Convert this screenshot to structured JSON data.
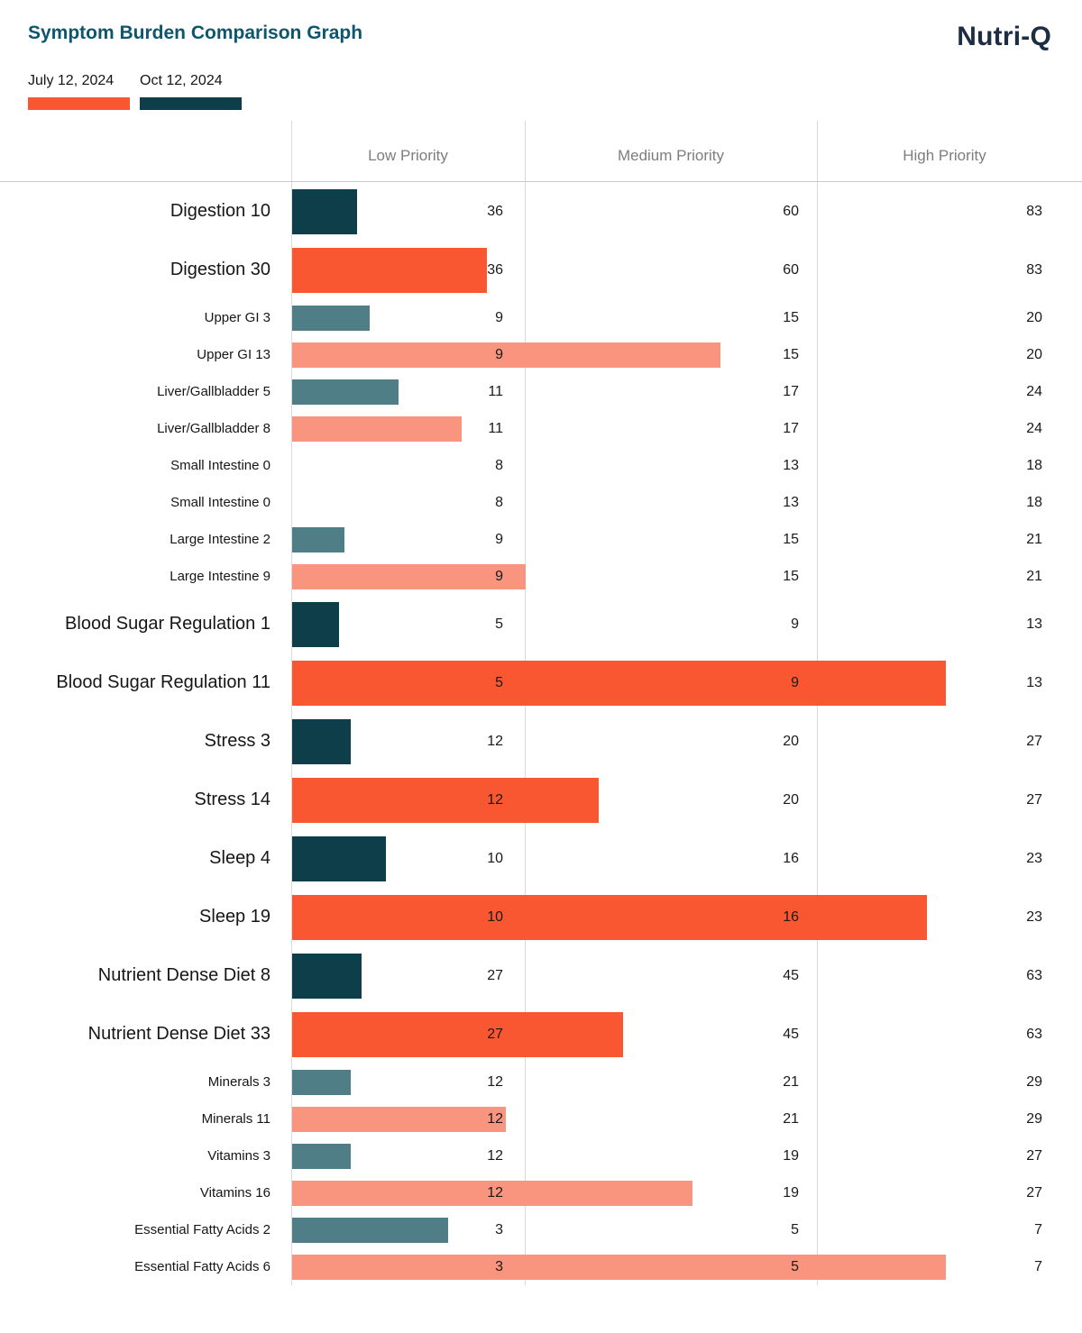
{
  "header": {
    "title": "Symptom Burden Comparison Graph",
    "logo": "Nutri-Q"
  },
  "chart_data": {
    "type": "bar",
    "orientation": "horizontal",
    "title": "Symptom Burden Comparison Graph",
    "columns": [
      "Low Priority",
      "Medium Priority",
      "High Priority"
    ],
    "legend": [
      {
        "name": "July 12, 2024",
        "series": "july",
        "color": "#f95732"
      },
      {
        "name": "Oct 12, 2024",
        "series": "oct",
        "color": "#0e3e4a"
      }
    ],
    "colors": {
      "july_large": "#f95732",
      "july_small": "#f9947e",
      "oct_large": "#0e3e4a",
      "oct_small": "#4f7e87"
    },
    "rows": [
      {
        "label": "Digestion 10",
        "value": 10,
        "thresholds": [
          36,
          60,
          83
        ],
        "series": "oct",
        "emphasis": "large"
      },
      {
        "label": "Digestion 30",
        "value": 30,
        "thresholds": [
          36,
          60,
          83
        ],
        "series": "july",
        "emphasis": "large"
      },
      {
        "label": "Upper GI 3",
        "value": 3,
        "thresholds": [
          9,
          15,
          20
        ],
        "series": "oct",
        "emphasis": "small"
      },
      {
        "label": "Upper GI 13",
        "value": 13,
        "thresholds": [
          9,
          15,
          20
        ],
        "series": "july",
        "emphasis": "small"
      },
      {
        "label": "Liver/Gallbladder 5",
        "value": 5,
        "thresholds": [
          11,
          17,
          24
        ],
        "series": "oct",
        "emphasis": "small"
      },
      {
        "label": "Liver/Gallbladder 8",
        "value": 8,
        "thresholds": [
          11,
          17,
          24
        ],
        "series": "july",
        "emphasis": "small"
      },
      {
        "label": "Small Intestine 0",
        "value": 0,
        "thresholds": [
          8,
          13,
          18
        ],
        "series": "oct",
        "emphasis": "small"
      },
      {
        "label": "Small Intestine 0",
        "value": 0,
        "thresholds": [
          8,
          13,
          18
        ],
        "series": "july",
        "emphasis": "small"
      },
      {
        "label": "Large Intestine 2",
        "value": 2,
        "thresholds": [
          9,
          15,
          21
        ],
        "series": "oct",
        "emphasis": "small"
      },
      {
        "label": "Large Intestine 9",
        "value": 9,
        "thresholds": [
          9,
          15,
          21
        ],
        "series": "july",
        "emphasis": "small"
      },
      {
        "label": "Blood Sugar Regulation 1",
        "value": 1,
        "thresholds": [
          5,
          9,
          13
        ],
        "series": "oct",
        "emphasis": "large"
      },
      {
        "label": "Blood Sugar Regulation 11",
        "value": 11,
        "thresholds": [
          5,
          9,
          13
        ],
        "series": "july",
        "emphasis": "large"
      },
      {
        "label": "Stress 3",
        "value": 3,
        "thresholds": [
          12,
          20,
          27
        ],
        "series": "oct",
        "emphasis": "large"
      },
      {
        "label": "Stress 14",
        "value": 14,
        "thresholds": [
          12,
          20,
          27
        ],
        "series": "july",
        "emphasis": "large"
      },
      {
        "label": "Sleep 4",
        "value": 4,
        "thresholds": [
          10,
          16,
          23
        ],
        "series": "oct",
        "emphasis": "large"
      },
      {
        "label": "Sleep 19",
        "value": 19,
        "thresholds": [
          10,
          16,
          23
        ],
        "series": "july",
        "emphasis": "large"
      },
      {
        "label": "Nutrient Dense Diet 8",
        "value": 8,
        "thresholds": [
          27,
          45,
          63
        ],
        "series": "oct",
        "emphasis": "large"
      },
      {
        "label": "Nutrient Dense Diet 33",
        "value": 33,
        "thresholds": [
          27,
          45,
          63
        ],
        "series": "july",
        "emphasis": "large"
      },
      {
        "label": "Minerals 3",
        "value": 3,
        "thresholds": [
          12,
          21,
          29
        ],
        "series": "oct",
        "emphasis": "small"
      },
      {
        "label": "Minerals 11",
        "value": 11,
        "thresholds": [
          12,
          21,
          29
        ],
        "series": "july",
        "emphasis": "small"
      },
      {
        "label": "Vitamins 3",
        "value": 3,
        "thresholds": [
          12,
          19,
          27
        ],
        "series": "oct",
        "emphasis": "small"
      },
      {
        "label": "Vitamins 16",
        "value": 16,
        "thresholds": [
          12,
          19,
          27
        ],
        "series": "july",
        "emphasis": "small"
      },
      {
        "label": "Essential Fatty Acids 2",
        "value": 2,
        "thresholds": [
          3,
          5,
          7
        ],
        "series": "oct",
        "emphasis": "small"
      },
      {
        "label": "Essential Fatty Acids 6",
        "value": 6,
        "thresholds": [
          3,
          5,
          7
        ],
        "series": "july",
        "emphasis": "small"
      }
    ]
  }
}
